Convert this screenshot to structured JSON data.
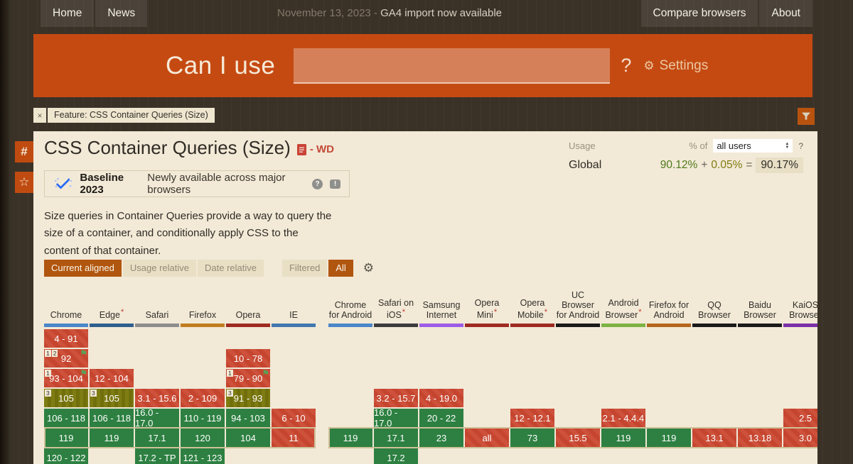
{
  "topbar": {
    "tabs_left": [
      "Home",
      "News"
    ],
    "announcement_date": "November 13, 2023 - ",
    "announcement_text": "GA4 import now available",
    "tabs_right": [
      "Compare browsers",
      "About"
    ]
  },
  "header": {
    "logo_text": "Can I use",
    "search_value": "",
    "search_placeholder": "",
    "question_mark": "?",
    "settings_label": "Settings"
  },
  "feature_tag": {
    "close": "×",
    "label": "Feature: CSS Container Queries (Size)"
  },
  "side_buttons": {
    "hash": "#",
    "star": "☆"
  },
  "icons": {
    "gear": "⚙",
    "flag": "⚑",
    "help": "?",
    "feedback": "!",
    "close": "×",
    "star": "☆",
    "hash": "#"
  },
  "feature": {
    "title": "CSS Container Queries (Size)",
    "spec_status": "- WD",
    "usage": {
      "label": "Usage",
      "percent_of": "% of",
      "select_value": "all users",
      "help": "?",
      "region": "Global",
      "value_full": "90.12%",
      "plus": "+",
      "value_partial": "0.05%",
      "equals": "=",
      "value_total": "90.17%"
    },
    "baseline": {
      "title": "Baseline 2023",
      "subtitle": "Newly available across major browsers",
      "help": "?",
      "feedback": "!"
    },
    "description": "Size queries in Container Queries provide a way to query the size of a container, and conditionally apply CSS to the content of that container.",
    "view_buttons": [
      {
        "label": "Current aligned",
        "active": true
      },
      {
        "label": "Usage relative",
        "active": false
      },
      {
        "label": "Date relative",
        "active": false
      }
    ],
    "filter_buttons": [
      {
        "label": "Filtered",
        "active": false
      },
      {
        "label": "All",
        "active": true
      }
    ]
  },
  "support_table": {
    "row_count": 7,
    "current_row": 5,
    "legend_colors": {
      "supported": "#2d8041",
      "unsupported": "#c5452f",
      "partial": "#7e7c12"
    },
    "columns": [
      {
        "name": "Chrome",
        "group": "desktop",
        "bar_color": "#4a86c8",
        "asterisk": false,
        "cells": [
          {
            "row": 0,
            "label": "4 - 91",
            "support": "no"
          },
          {
            "row": 1,
            "label": "92",
            "support": "no",
            "notes": [
              "1",
              "2"
            ],
            "flag": true
          },
          {
            "row": 2,
            "label": "93 - 104",
            "support": "no",
            "notes": [
              "1"
            ],
            "flag": true
          },
          {
            "row": 3,
            "label": "105",
            "support": "partial",
            "notes": [
              "3"
            ]
          },
          {
            "row": 4,
            "label": "106 - 118",
            "support": "yes"
          },
          {
            "row": 5,
            "label": "119",
            "support": "yes",
            "current": true
          },
          {
            "row": 6,
            "label": "120 - 122",
            "support": "yes"
          }
        ]
      },
      {
        "name": "Edge",
        "group": "desktop",
        "bar_color": "#2e5f8f",
        "asterisk": true,
        "cells": [
          {
            "row": 2,
            "label": "12 - 104",
            "support": "no"
          },
          {
            "row": 3,
            "label": "105",
            "support": "partial",
            "notes": [
              "3"
            ]
          },
          {
            "row": 4,
            "label": "106 - 118",
            "support": "yes"
          },
          {
            "row": 5,
            "label": "119",
            "support": "yes",
            "current": true
          }
        ]
      },
      {
        "name": "Safari",
        "group": "desktop",
        "bar_color": "#8d8d8d",
        "asterisk": false,
        "cells": [
          {
            "row": 3,
            "label": "3.1 - 15.6",
            "support": "no"
          },
          {
            "row": 4,
            "label": "16.0 - 17.0",
            "support": "yes"
          },
          {
            "row": 5,
            "label": "17.1",
            "support": "yes",
            "current": true
          },
          {
            "row": 6,
            "label": "17.2 - TP",
            "support": "yes"
          }
        ]
      },
      {
        "name": "Firefox",
        "group": "desktop",
        "bar_color": "#c17c1d",
        "asterisk": false,
        "cells": [
          {
            "row": 3,
            "label": "2 - 109",
            "support": "no"
          },
          {
            "row": 4,
            "label": "110 - 119",
            "support": "yes"
          },
          {
            "row": 5,
            "label": "120",
            "support": "yes",
            "current": true
          },
          {
            "row": 6,
            "label": "121 - 123",
            "support": "yes"
          }
        ]
      },
      {
        "name": "Opera",
        "group": "desktop",
        "bar_color": "#9e2a22",
        "asterisk": false,
        "cells": [
          {
            "row": 1,
            "label": "10 - 78",
            "support": "no"
          },
          {
            "row": 2,
            "label": "79 - 90",
            "support": "no",
            "notes": [
              "1"
            ],
            "flag": true
          },
          {
            "row": 3,
            "label": "91 - 93",
            "support": "partial",
            "notes": [
              "3"
            ]
          },
          {
            "row": 4,
            "label": "94 - 103",
            "support": "yes"
          },
          {
            "row": 5,
            "label": "104",
            "support": "yes",
            "current": true
          }
        ]
      },
      {
        "name": "IE",
        "group": "desktop",
        "bar_color": "#4178b0",
        "asterisk": false,
        "cells": [
          {
            "row": 4,
            "label": "6 - 10",
            "support": "no"
          },
          {
            "row": 5,
            "label": "11",
            "support": "no",
            "current": true
          }
        ]
      },
      {
        "name": "Chrome for Android",
        "group": "mobile",
        "bar_color": "#4a86c8",
        "asterisk": false,
        "cells": [
          {
            "row": 5,
            "label": "119",
            "support": "yes",
            "current": true
          }
        ]
      },
      {
        "name": "Safari on iOS",
        "group": "mobile",
        "bar_color": "#3b3b3b",
        "asterisk": true,
        "cells": [
          {
            "row": 3,
            "label": "3.2 - 15.7",
            "support": "no"
          },
          {
            "row": 4,
            "label": "16.0 - 17.0",
            "support": "yes"
          },
          {
            "row": 5,
            "label": "17.1",
            "support": "yes",
            "current": true
          },
          {
            "row": 6,
            "label": "17.2",
            "support": "yes"
          }
        ]
      },
      {
        "name": "Samsung Internet",
        "group": "mobile",
        "bar_color": "#9d5ce6",
        "asterisk": false,
        "cells": [
          {
            "row": 3,
            "label": "4 - 19.0",
            "support": "no"
          },
          {
            "row": 4,
            "label": "20 - 22",
            "support": "yes"
          },
          {
            "row": 5,
            "label": "23",
            "support": "yes",
            "current": true
          }
        ]
      },
      {
        "name": "Opera Mini",
        "group": "mobile",
        "bar_color": "#9e2a22",
        "asterisk": true,
        "cells": [
          {
            "row": 5,
            "label": "all",
            "support": "no",
            "current": true
          }
        ]
      },
      {
        "name": "Opera Mobile",
        "group": "mobile",
        "bar_color": "#9e2a22",
        "asterisk": true,
        "cells": [
          {
            "row": 4,
            "label": "12 - 12.1",
            "support": "no"
          },
          {
            "row": 5,
            "label": "73",
            "support": "yes",
            "current": true
          }
        ]
      },
      {
        "name": "UC Browser for Android",
        "group": "mobile",
        "bar_color": "#1a1a1a",
        "asterisk": false,
        "cells": [
          {
            "row": 5,
            "label": "15.5",
            "support": "no",
            "current": true
          }
        ]
      },
      {
        "name": "Android Browser",
        "group": "mobile",
        "bar_color": "#7cb342",
        "asterisk": true,
        "cells": [
          {
            "row": 4,
            "label": "2.1 - 4.4.4",
            "support": "no"
          },
          {
            "row": 5,
            "label": "119",
            "support": "yes",
            "current": true
          }
        ]
      },
      {
        "name": "Firefox for Android",
        "group": "mobile",
        "bar_color": "#b5651d",
        "asterisk": false,
        "cells": [
          {
            "row": 5,
            "label": "119",
            "support": "yes",
            "current": true
          }
        ]
      },
      {
        "name": "QQ Browser",
        "group": "mobile",
        "bar_color": "#1a1a1a",
        "asterisk": false,
        "cells": [
          {
            "row": 5,
            "label": "13.1",
            "support": "no",
            "current": true
          }
        ]
      },
      {
        "name": "Baidu Browser",
        "group": "mobile",
        "bar_color": "#1a1a1a",
        "asterisk": false,
        "cells": [
          {
            "row": 5,
            "label": "13.18",
            "support": "no",
            "current": true
          }
        ]
      },
      {
        "name": "KaiOS Browser",
        "group": "mobile",
        "bar_color": "#7b2fa8",
        "asterisk": false,
        "cells": [
          {
            "row": 4,
            "label": "2.5",
            "support": "no"
          },
          {
            "row": 5,
            "label": "3.0",
            "support": "no",
            "current": true
          }
        ]
      }
    ]
  }
}
